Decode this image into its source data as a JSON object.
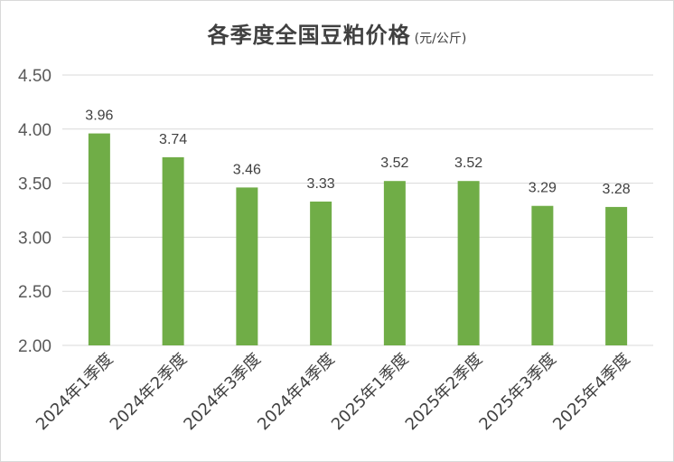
{
  "chart_data": {
    "type": "bar",
    "title": "各季度全国豆粕价格",
    "unit": "(元/公斤)",
    "categories": [
      "2024年1季度",
      "2024年2季度",
      "2024年3季度",
      "2024年4季度",
      "2025年1季度",
      "2025年2季度",
      "2025年3季度",
      "2025年4季度"
    ],
    "values": [
      3.96,
      3.74,
      3.46,
      3.33,
      3.52,
      3.52,
      3.29,
      3.28
    ],
    "data_labels": [
      "3.96",
      "3.74",
      "3.46",
      "3.33",
      "3.52",
      "3.52",
      "3.29",
      "3.28"
    ],
    "ylim": [
      2.0,
      4.5
    ],
    "yticks": [
      2.0,
      2.5,
      3.0,
      3.5,
      4.0,
      4.5
    ],
    "ytick_labels": [
      "2.00",
      "2.50",
      "3.00",
      "3.50",
      "4.00",
      "4.50"
    ],
    "grid": true,
    "bar_color": "#70ad47",
    "grid_color": "#d9d9d9"
  }
}
